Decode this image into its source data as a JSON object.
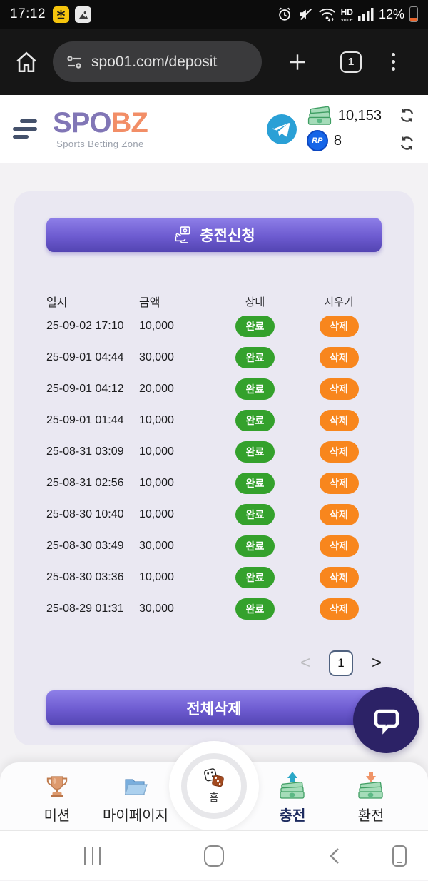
{
  "status_bar": {
    "time": "17:12",
    "battery_percent": "12%",
    "hd": "HD",
    "voice": "voice"
  },
  "browser": {
    "url": "spo01.com/deposit",
    "tab_count": "1"
  },
  "header": {
    "logo_primary": "SPO",
    "logo_secondary": "BZ",
    "tagline": "Sports Betting Zone",
    "cash_balance": "10,153",
    "rp_balance": "8",
    "rp_text": "RP"
  },
  "main": {
    "deposit_request_label": "충전신청",
    "delete_all_label": "전체삭제"
  },
  "history": {
    "columns": [
      "일시",
      "금액",
      "상태",
      "지우기"
    ],
    "status_complete": "완료",
    "delete_label": "삭제",
    "rows": [
      {
        "datetime": "25-09-02 17:10",
        "amount": "10,000"
      },
      {
        "datetime": "25-09-01 04:44",
        "amount": "30,000"
      },
      {
        "datetime": "25-09-01 04:12",
        "amount": "20,000"
      },
      {
        "datetime": "25-09-01 01:44",
        "amount": "10,000"
      },
      {
        "datetime": "25-08-31 03:09",
        "amount": "10,000"
      },
      {
        "datetime": "25-08-31 02:56",
        "amount": "10,000"
      },
      {
        "datetime": "25-08-30 10:40",
        "amount": "10,000"
      },
      {
        "datetime": "25-08-30 03:49",
        "amount": "30,000"
      },
      {
        "datetime": "25-08-30 03:36",
        "amount": "10,000"
      },
      {
        "datetime": "25-08-29 01:31",
        "amount": "30,000"
      }
    ]
  },
  "pagination": {
    "prev": "<",
    "current_page": "1",
    "next": ">"
  },
  "bottom_nav": {
    "home_label": "홈",
    "items": [
      {
        "label": "미션",
        "active": false
      },
      {
        "label": "마이페이지",
        "active": false
      },
      {
        "label": "충전",
        "active": true
      },
      {
        "label": "환전",
        "active": false
      }
    ]
  },
  "colors": {
    "accent_purple_top": "#8e7fe8",
    "accent_purple_bottom": "#5344b2",
    "badge_green": "#34a12c",
    "badge_orange": "#f8861d",
    "logo_purple": "#8176b6",
    "logo_orange": "#f28e67",
    "chat_bubble_bg": "#2c2266",
    "telegram_blue": "#2aa0d6"
  }
}
